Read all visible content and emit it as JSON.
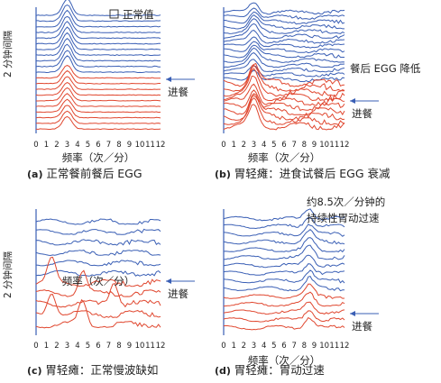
{
  "colors": {
    "pre": "#3a5fb5",
    "post": "#e0472f",
    "frame": "#3a5fb5",
    "text": "#222222"
  },
  "shared": {
    "xlabel": "频率（次／分）",
    "ylabel": "2 分钟间隔",
    "meal_label": "进餐",
    "normal_legend": "正常值",
    "xticks": [
      "0",
      "1",
      "2",
      "3",
      "4",
      "5",
      "6",
      "7",
      "8",
      "9",
      "10",
      "11",
      "12"
    ]
  },
  "chart_data": [
    {
      "type": "line",
      "panel": "a",
      "caption_prefix": "(a)",
      "caption": "正常餐前餐后 EGG",
      "xlim": [
        0,
        12
      ],
      "pre_traces": 11,
      "post_traces": 10,
      "peak_x": 3.0,
      "pre_peak": 0.45,
      "post_peak": 0.35,
      "legend": "正常值",
      "annotation": ""
    },
    {
      "type": "line",
      "panel": "b",
      "caption_prefix": "(b)",
      "caption": "胃轻瘫：进食试餐后 EGG 衰减",
      "xlim": [
        0,
        12
      ],
      "pre_traces": 15,
      "post_traces": 10,
      "peak_x": 3.0,
      "pre_peak": 0.3,
      "post_peak": 0.55,
      "legend": "",
      "annotation": "餐后 EGG 降低"
    },
    {
      "type": "line",
      "panel": "c",
      "caption_prefix": "(c)",
      "caption": "胃轻瘫：正常慢波缺如",
      "xlim": [
        0,
        12
      ],
      "pre_traces": 6,
      "post_traces": 5,
      "peak_x": null,
      "pre_peak": 0.4,
      "post_peak": 0.5,
      "legend": "",
      "annotation": ""
    },
    {
      "type": "line",
      "panel": "d",
      "caption_prefix": "(d)",
      "caption": "胃轻瘫：胃动过速",
      "xlim": [
        0,
        12
      ],
      "pre_traces": 10,
      "post_traces": 5,
      "peak_x": 8.5,
      "pre_peak": 0.3,
      "post_peak": 0.3,
      "legend": "",
      "annotation": "约8.5次／分钟的\n持续性胃动过速"
    }
  ]
}
